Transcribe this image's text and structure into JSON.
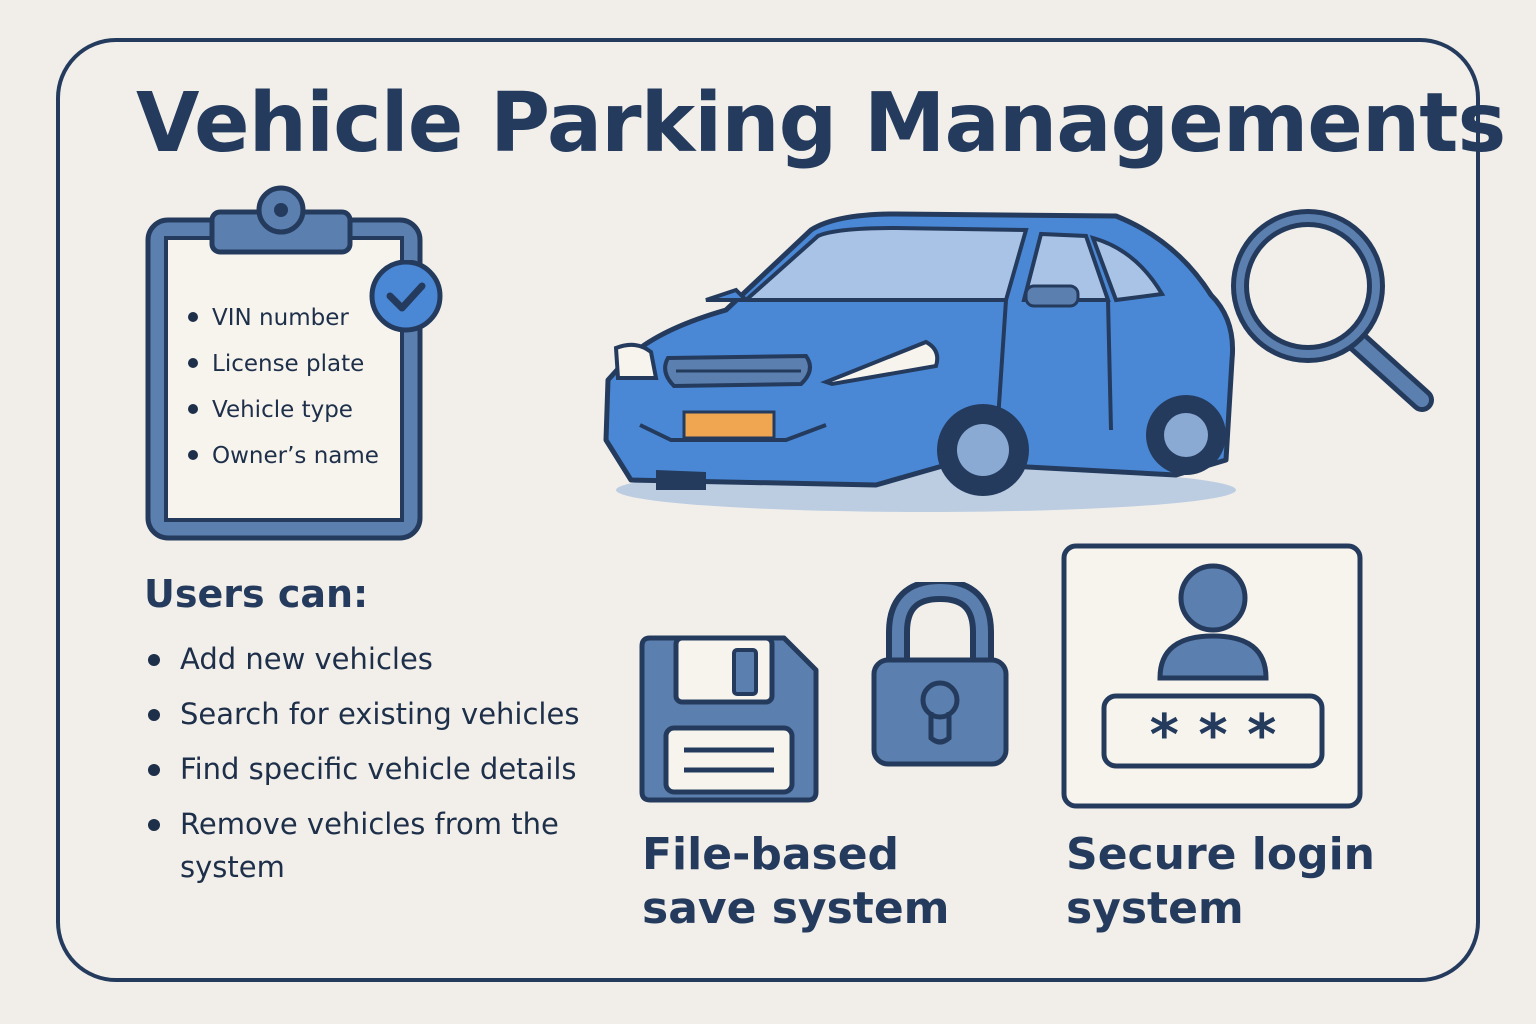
{
  "title": "Vehicle Parking Managements",
  "record_fields": [
    "VIN number",
    "License plate",
    "Vehicle type",
    "Owner’s name"
  ],
  "users": {
    "heading": "Users can:",
    "actions": [
      "Add new vehicles",
      "Search for existing vehicles",
      "Find specific vehicle details",
      "Remove vehicles from the system"
    ]
  },
  "features": {
    "file_save": "File-based save system",
    "secure_login": "Secure login system",
    "password_mask": "* * *"
  },
  "icons": [
    "clipboard-icon",
    "checkmark-icon",
    "car-icon",
    "magnifier-icon",
    "floppy-disk-icon",
    "padlock-icon",
    "user-login-icon"
  ],
  "colors": {
    "navy": "#243b5e",
    "blue": "#4a88d6",
    "steel": "#5b7fae",
    "plate": "#f0a650",
    "background": "#f2efea"
  }
}
